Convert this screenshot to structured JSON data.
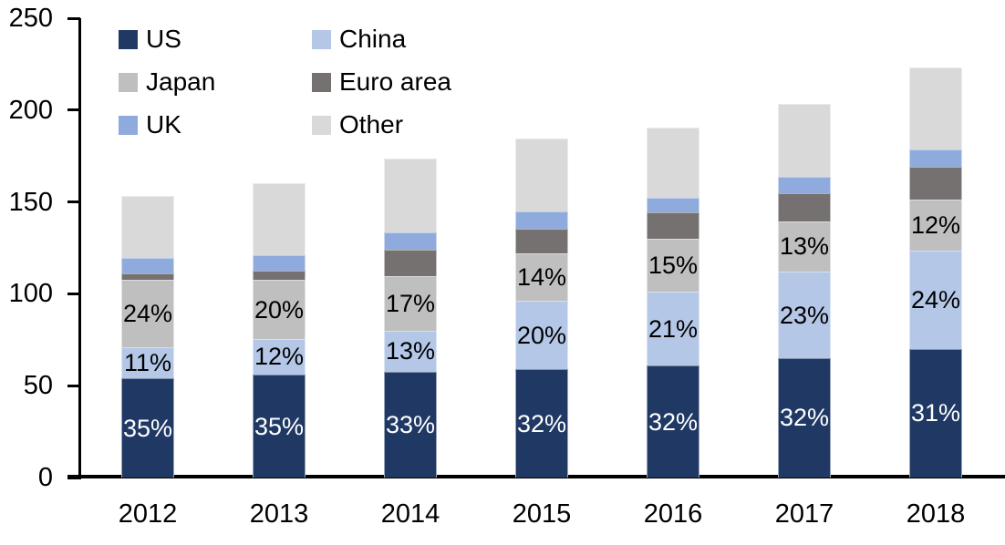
{
  "chart_data": {
    "type": "bar",
    "stacked": true,
    "title": "",
    "categories": [
      "2012",
      "2013",
      "2014",
      "2015",
      "2016",
      "2017",
      "2018"
    ],
    "series": [
      {
        "name": "US",
        "color": "#1F3864",
        "values": [
          54,
          56,
          57.5,
          59,
          61,
          65,
          70
        ],
        "labels": [
          "35%",
          "35%",
          "33%",
          "32%",
          "32%",
          "32%",
          "31%"
        ],
        "label_color": "#FFFFFF"
      },
      {
        "name": "China",
        "color": "#B4C7E7",
        "values": [
          17,
          19.5,
          22.5,
          37,
          40,
          47,
          53.5
        ],
        "labels": [
          "11%",
          "12%",
          "13%",
          "20%",
          "21%",
          "23%",
          "24%"
        ],
        "label_color": "#000000"
      },
      {
        "name": "Japan",
        "color": "#BFBFBF",
        "values": [
          36.5,
          32,
          29.5,
          26,
          29,
          27.5,
          28
        ],
        "labels": [
          "24%",
          "20%",
          "17%",
          "14%",
          "15%",
          "13%",
          "12%"
        ],
        "label_color": "#000000"
      },
      {
        "name": "Euro area",
        "color": "#757171",
        "values": [
          3.5,
          5,
          14.5,
          13.5,
          14.5,
          15.5,
          17.5
        ]
      },
      {
        "name": "UK",
        "color": "#8FAADC",
        "values": [
          8.5,
          8.5,
          9.5,
          9.5,
          8,
          8.5,
          9.5
        ]
      },
      {
        "name": "Other",
        "color": "#D9D9D9",
        "values": [
          34,
          39,
          40,
          39.5,
          38,
          40,
          44.5
        ]
      }
    ],
    "totals": [
      153.5,
      160,
      173.5,
      184.5,
      190.5,
      203.5,
      223
    ],
    "y_axis": {
      "min": 0,
      "max": 250,
      "tick_interval": 50,
      "ticks": [
        "0",
        "50",
        "100",
        "150",
        "200",
        "250"
      ]
    },
    "x_axis": {
      "ticks": [
        "2012",
        "2013",
        "2014",
        "2015",
        "2016",
        "2017",
        "2018"
      ]
    },
    "legend": {
      "position": "top-left",
      "columns": 2,
      "entries": [
        "US",
        "China",
        "Japan",
        "Euro area",
        "UK",
        "Other"
      ]
    },
    "grid": false,
    "axis_color": "#000000",
    "background": "#FFFFFF"
  }
}
